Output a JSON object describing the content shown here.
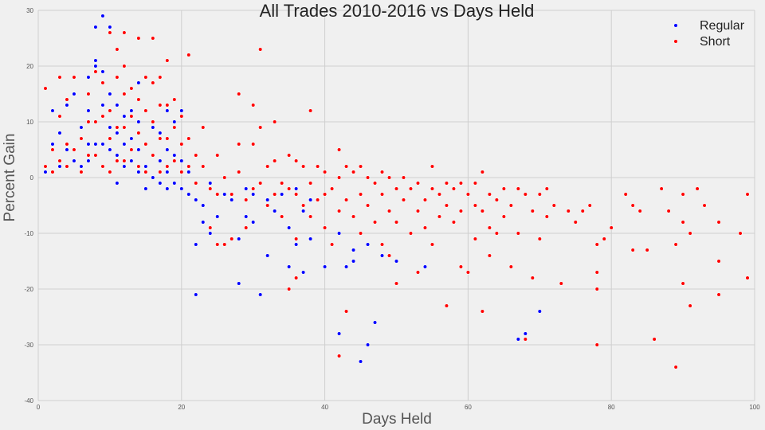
{
  "chart_data": {
    "type": "scatter",
    "title": "All Trades 2010-2016 vs Days Held",
    "xlabel": "Days Held",
    "ylabel": "Percent Gain",
    "xlim": [
      0,
      100
    ],
    "ylim": [
      -40,
      30
    ],
    "x_ticks": [
      "0",
      "20",
      "40",
      "60",
      "80",
      "100"
    ],
    "y_ticks": [
      "30",
      "20",
      "10",
      "0",
      "-10",
      "-20",
      "-30",
      "-40"
    ],
    "grid": true,
    "legend_position": "top-right",
    "series": [
      {
        "name": "Regular",
        "color": "#0000ff",
        "points": [
          [
            1,
            1
          ],
          [
            2,
            6
          ],
          [
            2,
            12
          ],
          [
            3,
            8
          ],
          [
            3,
            2
          ],
          [
            4,
            5
          ],
          [
            4,
            13
          ],
          [
            5,
            3
          ],
          [
            5,
            15
          ],
          [
            6,
            2
          ],
          [
            6,
            9
          ],
          [
            7,
            12
          ],
          [
            7,
            18
          ],
          [
            7,
            3
          ],
          [
            7,
            6
          ],
          [
            8,
            20
          ],
          [
            8,
            21
          ],
          [
            8,
            27
          ],
          [
            8,
            10
          ],
          [
            8,
            6
          ],
          [
            8,
            4
          ],
          [
            9,
            29
          ],
          [
            9,
            19
          ],
          [
            9,
            13
          ],
          [
            9,
            6
          ],
          [
            10,
            27
          ],
          [
            10,
            15
          ],
          [
            10,
            9
          ],
          [
            10,
            5
          ],
          [
            11,
            13
          ],
          [
            11,
            8
          ],
          [
            11,
            4
          ],
          [
            11,
            -1
          ],
          [
            12,
            11
          ],
          [
            12,
            6
          ],
          [
            12,
            2
          ],
          [
            13,
            12
          ],
          [
            13,
            7
          ],
          [
            13,
            3
          ],
          [
            14,
            17
          ],
          [
            14,
            10
          ],
          [
            14,
            5
          ],
          [
            14,
            1
          ],
          [
            15,
            6
          ],
          [
            15,
            2
          ],
          [
            15,
            -2
          ],
          [
            16,
            9
          ],
          [
            16,
            4
          ],
          [
            16,
            0
          ],
          [
            17,
            8
          ],
          [
            17,
            3
          ],
          [
            17,
            -1
          ],
          [
            18,
            12
          ],
          [
            18,
            5
          ],
          [
            18,
            1
          ],
          [
            18,
            -2
          ],
          [
            19,
            10
          ],
          [
            19,
            4
          ],
          [
            19,
            -1
          ],
          [
            20,
            12
          ],
          [
            20,
            3
          ],
          [
            20,
            -2
          ],
          [
            21,
            7
          ],
          [
            21,
            1
          ],
          [
            21,
            -3
          ],
          [
            22,
            -4
          ],
          [
            22,
            -12
          ],
          [
            22,
            -21
          ],
          [
            23,
            -5
          ],
          [
            23,
            -8
          ],
          [
            24,
            -1
          ],
          [
            24,
            -10
          ],
          [
            25,
            -7
          ],
          [
            26,
            -3
          ],
          [
            27,
            -4
          ],
          [
            28,
            -11
          ],
          [
            28,
            -19
          ],
          [
            29,
            -2
          ],
          [
            29,
            -7
          ],
          [
            30,
            -3
          ],
          [
            30,
            -8
          ],
          [
            31,
            -21
          ],
          [
            32,
            -4
          ],
          [
            32,
            -14
          ],
          [
            33,
            -6
          ],
          [
            34,
            -3
          ],
          [
            35,
            -9
          ],
          [
            35,
            -16
          ],
          [
            36,
            -2
          ],
          [
            36,
            -12
          ],
          [
            37,
            -17
          ],
          [
            37,
            -6
          ],
          [
            38,
            -11
          ],
          [
            38,
            -4
          ],
          [
            40,
            -16
          ],
          [
            42,
            -28
          ],
          [
            42,
            -10
          ],
          [
            43,
            -16
          ],
          [
            44,
            -13
          ],
          [
            44,
            -15
          ],
          [
            45,
            -33
          ],
          [
            46,
            -30
          ],
          [
            46,
            -12
          ],
          [
            47,
            -26
          ],
          [
            48,
            -14
          ],
          [
            50,
            -15
          ],
          [
            54,
            -16
          ],
          [
            67,
            -29
          ],
          [
            68,
            -28
          ],
          [
            70,
            -24
          ]
        ]
      },
      {
        "name": "Short",
        "color": "#ff0000",
        "points": [
          [
            1,
            16
          ],
          [
            1,
            2
          ],
          [
            2,
            5
          ],
          [
            2,
            1
          ],
          [
            3,
            18
          ],
          [
            3,
            11
          ],
          [
            3,
            3
          ],
          [
            4,
            14
          ],
          [
            4,
            6
          ],
          [
            4,
            2
          ],
          [
            5,
            5
          ],
          [
            5,
            18
          ],
          [
            6,
            7
          ],
          [
            6,
            1
          ],
          [
            7,
            15
          ],
          [
            7,
            10
          ],
          [
            7,
            4
          ],
          [
            8,
            19
          ],
          [
            8,
            10
          ],
          [
            8,
            4
          ],
          [
            9,
            17
          ],
          [
            9,
            11
          ],
          [
            9,
            2
          ],
          [
            10,
            26
          ],
          [
            10,
            12
          ],
          [
            10,
            7
          ],
          [
            10,
            1
          ],
          [
            11,
            23
          ],
          [
            11,
            18
          ],
          [
            11,
            9
          ],
          [
            11,
            3
          ],
          [
            12,
            20
          ],
          [
            12,
            26
          ],
          [
            12,
            15
          ],
          [
            12,
            9
          ],
          [
            12,
            3
          ],
          [
            13,
            16
          ],
          [
            13,
            11
          ],
          [
            13,
            5
          ],
          [
            14,
            25
          ],
          [
            14,
            14
          ],
          [
            14,
            8
          ],
          [
            14,
            2
          ],
          [
            15,
            18
          ],
          [
            15,
            12
          ],
          [
            15,
            6
          ],
          [
            15,
            1
          ],
          [
            16,
            25
          ],
          [
            16,
            17
          ],
          [
            16,
            10
          ],
          [
            16,
            4
          ],
          [
            17,
            18
          ],
          [
            17,
            13
          ],
          [
            17,
            7
          ],
          [
            17,
            1
          ],
          [
            18,
            21
          ],
          [
            18,
            13
          ],
          [
            18,
            7
          ],
          [
            18,
            2
          ],
          [
            19,
            14
          ],
          [
            19,
            9
          ],
          [
            19,
            3
          ],
          [
            20,
            11
          ],
          [
            20,
            6
          ],
          [
            20,
            1
          ],
          [
            21,
            22
          ],
          [
            21,
            7
          ],
          [
            21,
            2
          ],
          [
            22,
            4
          ],
          [
            22,
            -1
          ],
          [
            23,
            9
          ],
          [
            23,
            2
          ],
          [
            24,
            -2
          ],
          [
            24,
            -9
          ],
          [
            25,
            4
          ],
          [
            25,
            -3
          ],
          [
            25,
            -12
          ],
          [
            26,
            -12
          ],
          [
            26,
            0
          ],
          [
            27,
            -11
          ],
          [
            27,
            -3
          ],
          [
            28,
            15
          ],
          [
            28,
            6
          ],
          [
            28,
            1
          ],
          [
            29,
            -4
          ],
          [
            29,
            -9
          ],
          [
            30,
            13
          ],
          [
            30,
            6
          ],
          [
            30,
            -2
          ],
          [
            31,
            23
          ],
          [
            31,
            9
          ],
          [
            31,
            -1
          ],
          [
            32,
            2
          ],
          [
            32,
            -5
          ],
          [
            33,
            10
          ],
          [
            33,
            3
          ],
          [
            33,
            -3
          ],
          [
            34,
            -1
          ],
          [
            34,
            -7
          ],
          [
            35,
            -20
          ],
          [
            35,
            4
          ],
          [
            35,
            -2
          ],
          [
            36,
            -18
          ],
          [
            36,
            -11
          ],
          [
            36,
            3
          ],
          [
            36,
            -3
          ],
          [
            37,
            2
          ],
          [
            37,
            -5
          ],
          [
            38,
            12
          ],
          [
            38,
            -1
          ],
          [
            38,
            -7
          ],
          [
            39,
            2
          ],
          [
            39,
            -4
          ],
          [
            40,
            1
          ],
          [
            40,
            -3
          ],
          [
            40,
            -9
          ],
          [
            41,
            -2
          ],
          [
            41,
            -12
          ],
          [
            42,
            5
          ],
          [
            42,
            0
          ],
          [
            42,
            -6
          ],
          [
            42,
            -32
          ],
          [
            43,
            2
          ],
          [
            43,
            -4
          ],
          [
            43,
            -24
          ],
          [
            44,
            1
          ],
          [
            44,
            -7
          ],
          [
            45,
            2
          ],
          [
            45,
            -3
          ],
          [
            45,
            -10
          ],
          [
            46,
            0
          ],
          [
            46,
            -5
          ],
          [
            47,
            -1
          ],
          [
            47,
            -8
          ],
          [
            48,
            1
          ],
          [
            48,
            -3
          ],
          [
            48,
            -12
          ],
          [
            49,
            0
          ],
          [
            49,
            -6
          ],
          [
            49,
            -14
          ],
          [
            50,
            -2
          ],
          [
            50,
            -19
          ],
          [
            50,
            -8
          ],
          [
            51,
            0
          ],
          [
            51,
            -4
          ],
          [
            52,
            -2
          ],
          [
            52,
            -10
          ],
          [
            53,
            -1
          ],
          [
            53,
            -6
          ],
          [
            53,
            -17
          ],
          [
            54,
            -4
          ],
          [
            54,
            -9
          ],
          [
            55,
            2
          ],
          [
            55,
            -2
          ],
          [
            55,
            -12
          ],
          [
            56,
            -3
          ],
          [
            56,
            -7
          ],
          [
            57,
            -1
          ],
          [
            57,
            -5
          ],
          [
            57,
            -23
          ],
          [
            58,
            -2
          ],
          [
            58,
            -8
          ],
          [
            59,
            -1
          ],
          [
            59,
            -6
          ],
          [
            59,
            -16
          ],
          [
            60,
            -3
          ],
          [
            60,
            -17
          ],
          [
            61,
            -1
          ],
          [
            61,
            -5
          ],
          [
            61,
            -11
          ],
          [
            62,
            1
          ],
          [
            62,
            -24
          ],
          [
            62,
            -6
          ],
          [
            63,
            -3
          ],
          [
            63,
            -9
          ],
          [
            63,
            -14
          ],
          [
            64,
            -4
          ],
          [
            64,
            -10
          ],
          [
            65,
            -2
          ],
          [
            65,
            -7
          ],
          [
            66,
            -5
          ],
          [
            66,
            -16
          ],
          [
            67,
            -2
          ],
          [
            67,
            -10
          ],
          [
            68,
            -3
          ],
          [
            68,
            -29
          ],
          [
            69,
            -6
          ],
          [
            69,
            -18
          ],
          [
            70,
            -3
          ],
          [
            70,
            -11
          ],
          [
            71,
            -2
          ],
          [
            71,
            -7
          ],
          [
            72,
            -5
          ],
          [
            73,
            -19
          ],
          [
            74,
            -6
          ],
          [
            75,
            -8
          ],
          [
            76,
            -6
          ],
          [
            77,
            -5
          ],
          [
            78,
            -12
          ],
          [
            78,
            -17
          ],
          [
            78,
            -20
          ],
          [
            78,
            -30
          ],
          [
            79,
            -11
          ],
          [
            80,
            -9
          ],
          [
            82,
            -3
          ],
          [
            83,
            -5
          ],
          [
            83,
            -13
          ],
          [
            84,
            -6
          ],
          [
            85,
            -13
          ],
          [
            86,
            -29
          ],
          [
            87,
            -2
          ],
          [
            88,
            -6
          ],
          [
            89,
            -34
          ],
          [
            89,
            -12
          ],
          [
            90,
            -3
          ],
          [
            90,
            -8
          ],
          [
            90,
            -19
          ],
          [
            91,
            -10
          ],
          [
            91,
            -23
          ],
          [
            92,
            -2
          ],
          [
            93,
            -5
          ],
          [
            95,
            -8
          ],
          [
            95,
            -15
          ],
          [
            95,
            -21
          ],
          [
            98,
            -10
          ],
          [
            99,
            -3
          ],
          [
            99,
            -18
          ]
        ]
      }
    ]
  }
}
